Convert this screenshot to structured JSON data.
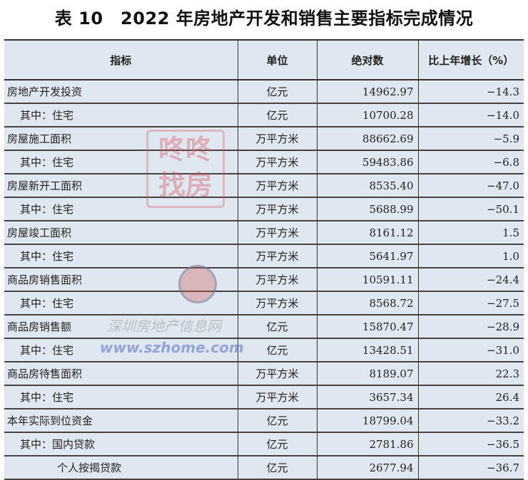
{
  "title": "表 10　2022 年房地产开发和销售主要指标完成情况",
  "columns": [
    "指标",
    "单位",
    "绝对数",
    "比上年增长（%）"
  ],
  "rows": [
    {
      "name": "房地产开发投资",
      "unit": "亿元",
      "value": "14962.97",
      "growth": "−14.3",
      "level": 0
    },
    {
      "name": "其中：住宅",
      "unit": "亿元",
      "value": "10700.28",
      "growth": "−14.0",
      "level": 1
    },
    {
      "name": "房屋施工面积",
      "unit": "万平方米",
      "value": "88662.69",
      "growth": "−5.9",
      "level": 0
    },
    {
      "name": "其中：住宅",
      "unit": "万平方米",
      "value": "59483.86",
      "growth": "−6.8",
      "level": 1
    },
    {
      "name": "房屋新开工面积",
      "unit": "万平方米",
      "value": "8535.40",
      "growth": "−47.0",
      "level": 0
    },
    {
      "name": "其中：住宅",
      "unit": "万平方米",
      "value": "5688.99",
      "growth": "−50.1",
      "level": 1
    },
    {
      "name": "房屋竣工面积",
      "unit": "万平方米",
      "value": "8161.12",
      "growth": "1.5",
      "level": 0
    },
    {
      "name": "其中：住宅",
      "unit": "万平方米",
      "value": "5641.97",
      "growth": "1.0",
      "level": 1
    },
    {
      "name": "商品房销售面积",
      "unit": "万平方米",
      "value": "10591.11",
      "growth": "−24.4",
      "level": 0
    },
    {
      "name": "其中：住宅",
      "unit": "万平方米",
      "value": "8568.72",
      "growth": "−27.5",
      "level": 1
    },
    {
      "name": "商品房销售额",
      "unit": "亿元",
      "value": "15870.47",
      "growth": "−28.9",
      "level": 0
    },
    {
      "name": "其中：住宅",
      "unit": "亿元",
      "value": "13428.51",
      "growth": "−31.0",
      "level": 1
    },
    {
      "name": "商品房待售面积",
      "unit": "万平方米",
      "value": "8189.07",
      "growth": "22.3",
      "level": 0
    },
    {
      "name": "其中：住宅",
      "unit": "万平方米",
      "value": "3657.34",
      "growth": "26.4",
      "level": 1
    },
    {
      "name": "本年实际到位资金",
      "unit": "亿元",
      "value": "18799.04",
      "growth": "−33.2",
      "level": 0
    },
    {
      "name": "其中：国内贷款",
      "unit": "亿元",
      "value": "2781.86",
      "growth": "−36.5",
      "level": 1
    },
    {
      "name": "个人按揭贷款",
      "unit": "亿元",
      "value": "2677.94",
      "growth": "−36.7",
      "level": 2
    }
  ],
  "watermark": {
    "logo_text": "咚咚找房",
    "site_name": "深圳房地产信息网",
    "url": "www.szhome.com"
  }
}
